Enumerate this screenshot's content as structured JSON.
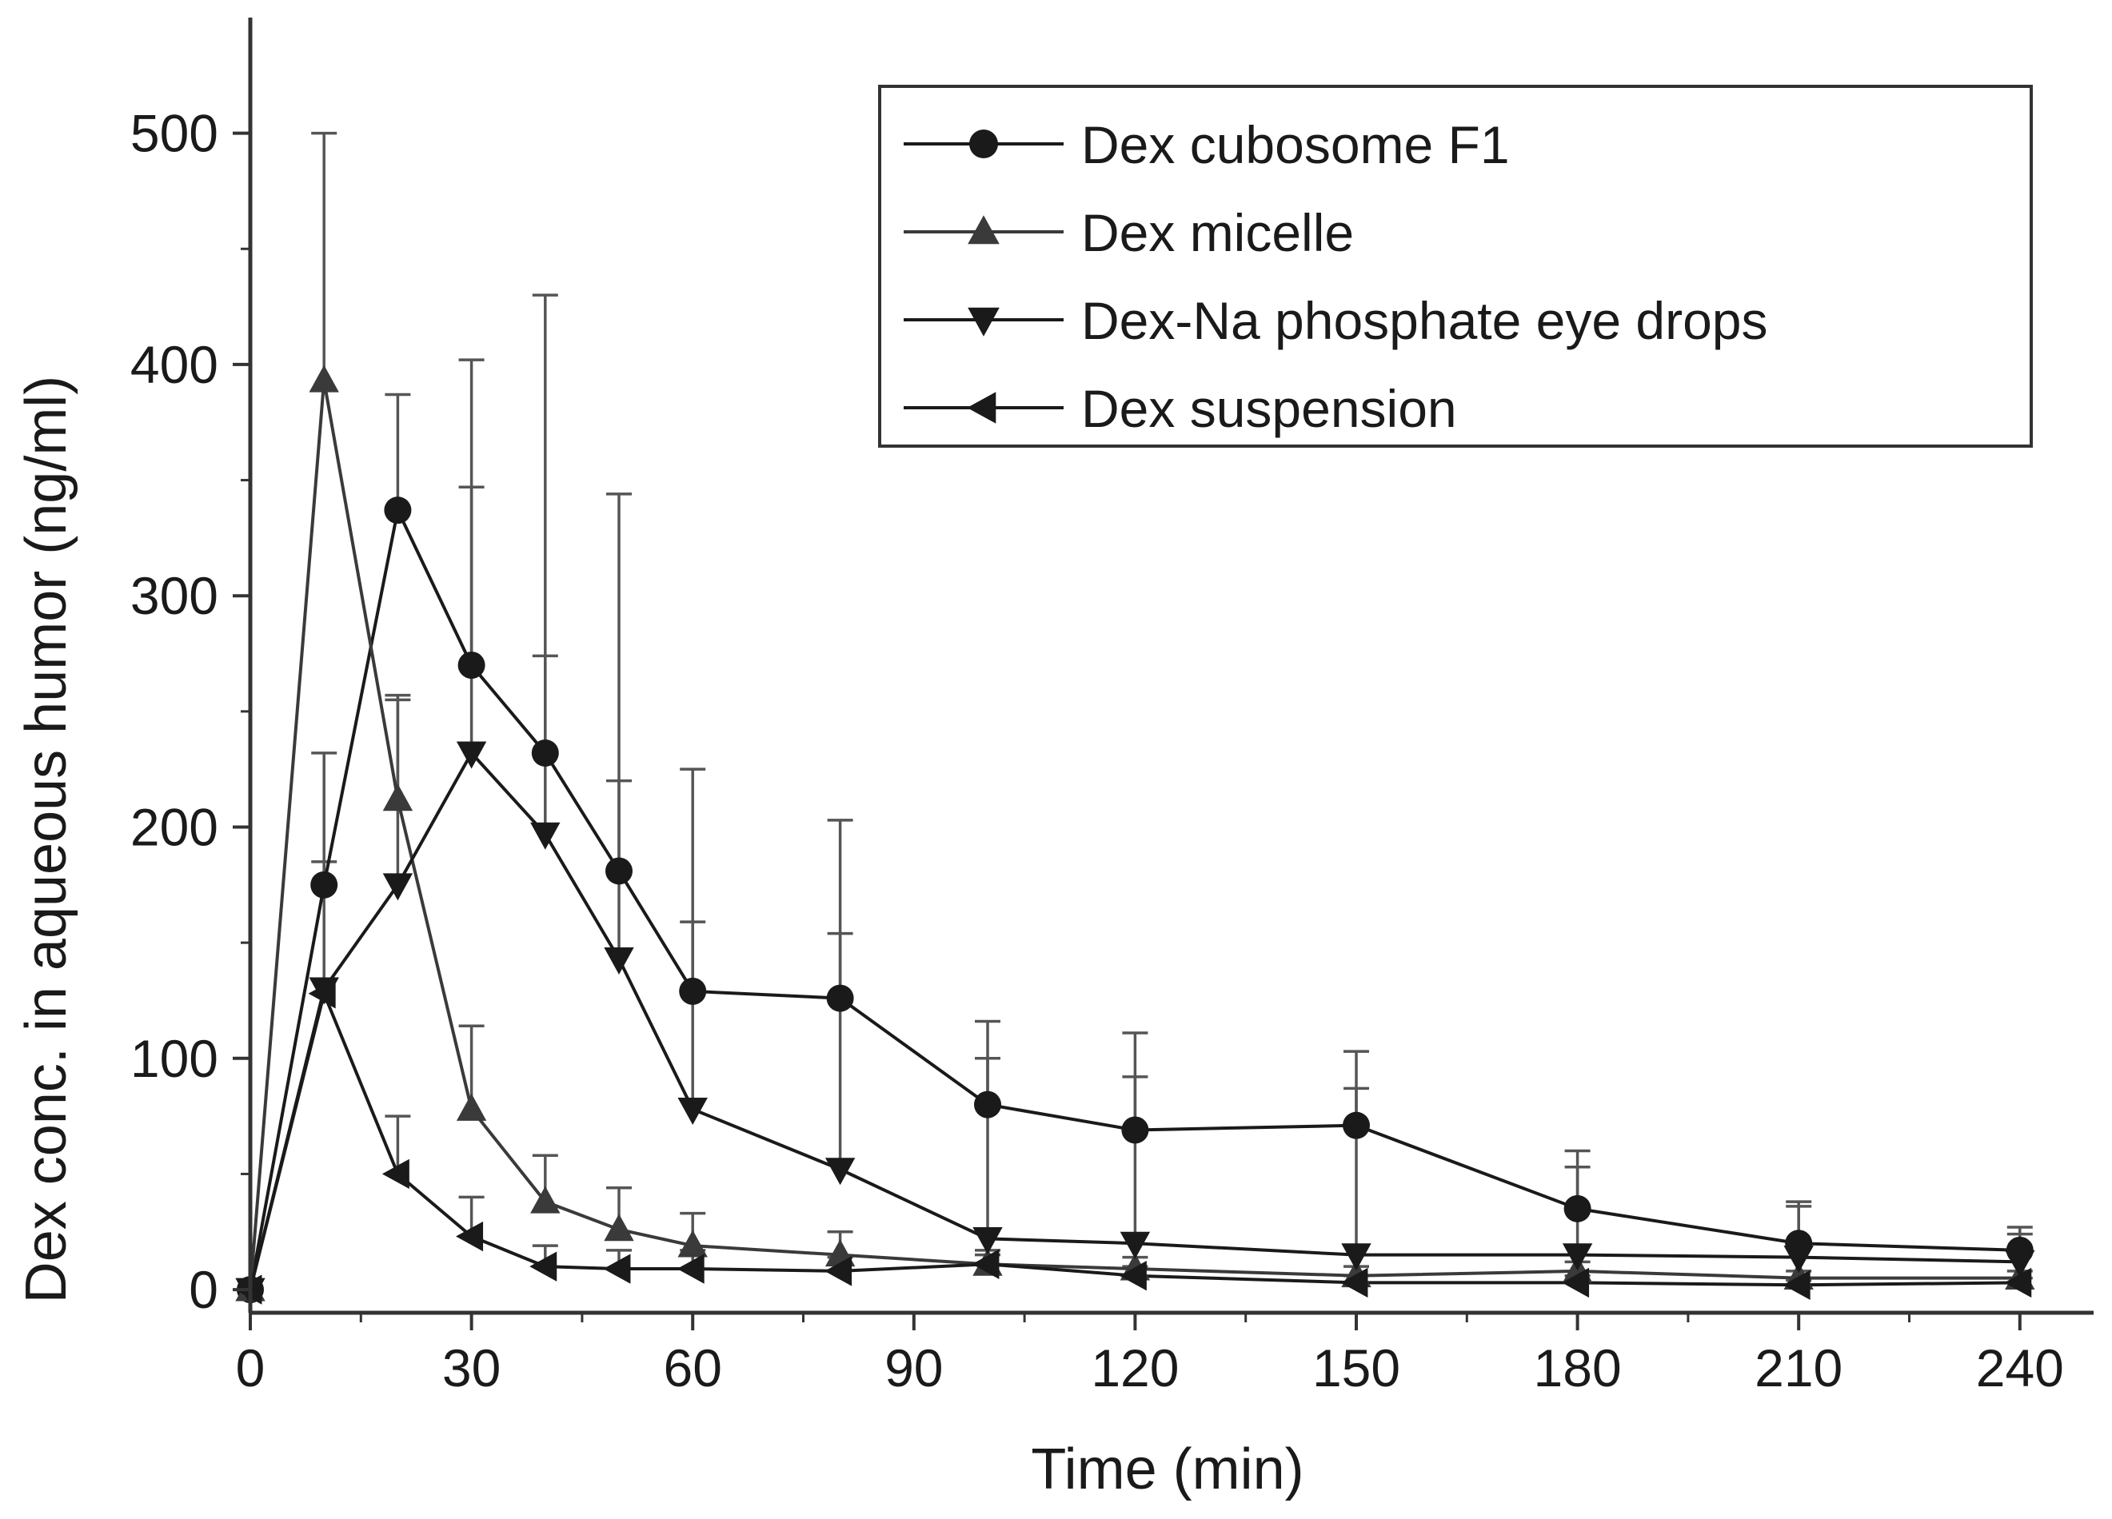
{
  "chart_data": {
    "type": "line",
    "title": "",
    "xlabel": "Time (min)",
    "ylabel": "Dex conc. in aqueous humor (ng/ml)",
    "xlim": [
      0,
      250
    ],
    "ylim": [
      -10,
      550
    ],
    "x_ticks": [
      0,
      30,
      60,
      90,
      120,
      150,
      180,
      210,
      240
    ],
    "y_ticks": [
      0,
      100,
      200,
      300,
      400,
      500
    ],
    "legend_position": "top-right",
    "series": [
      {
        "name": "Dex cubosome F1",
        "marker": "circle",
        "color": "#1a1a1a",
        "x": [
          0,
          10,
          20,
          30,
          40,
          50,
          60,
          80,
          100,
          120,
          150,
          180,
          210,
          240
        ],
        "values": [
          0,
          175,
          337,
          270,
          232,
          181,
          129,
          126,
          80,
          69,
          71,
          35,
          20,
          17
        ],
        "error": [
          0,
          57,
          50,
          132,
          198,
          163,
          96,
          77,
          36,
          42,
          32,
          25,
          18,
          10
        ]
      },
      {
        "name": "Dex micelle",
        "marker": "triangle-up",
        "color": "#3a3a3a",
        "x": [
          0,
          10,
          20,
          30,
          40,
          50,
          60,
          80,
          100,
          120,
          150,
          180,
          210,
          240
        ],
        "values": [
          0,
          393,
          212,
          78,
          38,
          26,
          19,
          15,
          11,
          9,
          6,
          8,
          5,
          5
        ],
        "error": [
          0,
          107,
          43,
          36,
          20,
          18,
          14,
          10,
          6,
          5,
          4,
          4,
          3,
          3
        ]
      },
      {
        "name": "Dex-Na phosphate eye drops",
        "marker": "triangle-down",
        "color": "#1a1a1a",
        "x": [
          0,
          10,
          20,
          30,
          40,
          50,
          60,
          80,
          100,
          120,
          150,
          180,
          210,
          240
        ],
        "values": [
          0,
          130,
          175,
          232,
          197,
          143,
          78,
          52,
          22,
          20,
          15,
          15,
          14,
          12
        ],
        "error": [
          0,
          55,
          82,
          115,
          77,
          77,
          81,
          102,
          78,
          72,
          72,
          38,
          22,
          12
        ]
      },
      {
        "name": "Dex suspension",
        "marker": "triangle-left",
        "color": "#1a1a1a",
        "x": [
          0,
          10,
          20,
          30,
          40,
          50,
          60,
          80,
          100,
          120,
          150,
          180,
          210,
          240
        ],
        "values": [
          0,
          128,
          50,
          23,
          10,
          9,
          9,
          8,
          11,
          6,
          3,
          3,
          2,
          3
        ],
        "error": [
          0,
          0,
          25,
          17,
          9,
          8,
          8,
          6,
          4,
          4,
          3,
          3,
          2,
          2
        ]
      }
    ]
  }
}
